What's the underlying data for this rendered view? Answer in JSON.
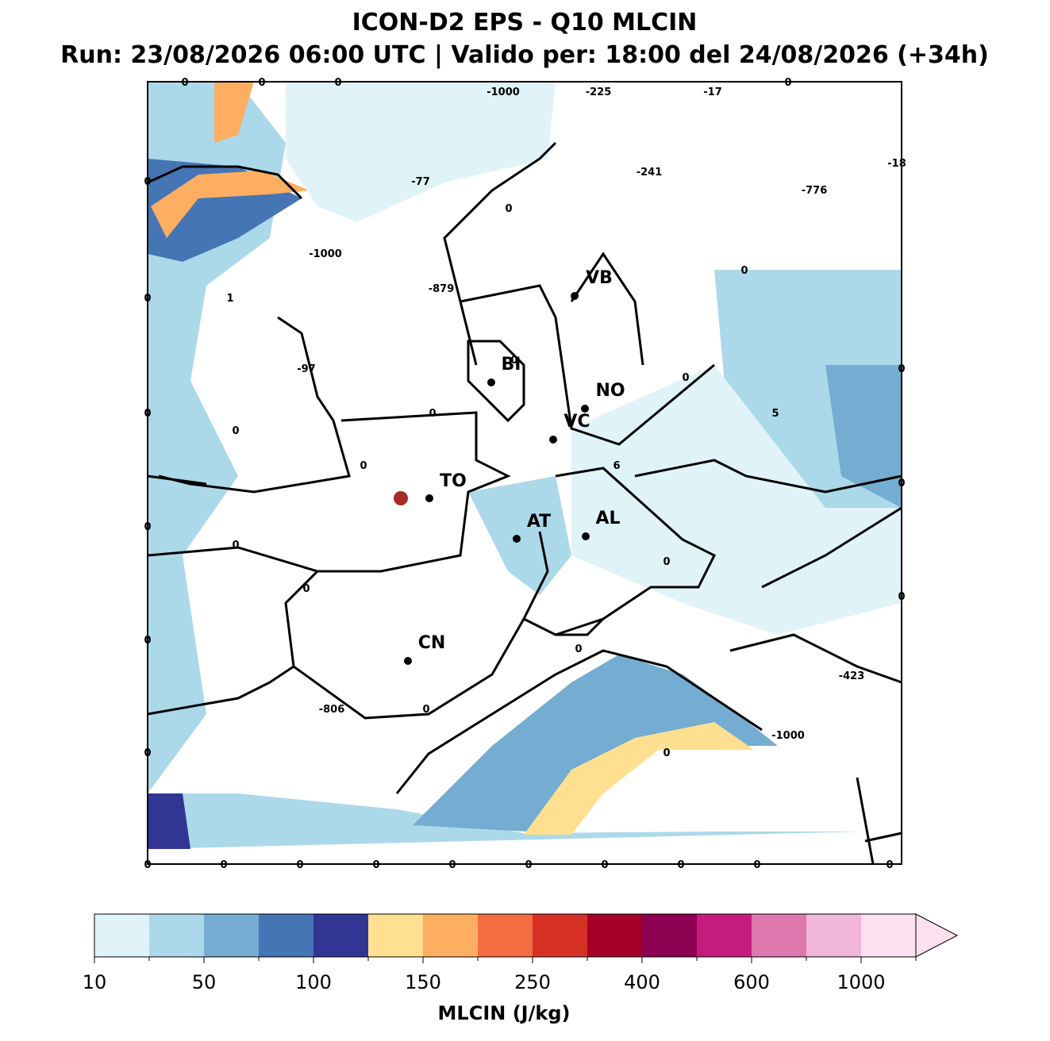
{
  "header": {
    "title": "ICON-D2 EPS - Q10 MLCIN",
    "subtitle": "Run: 23/08/2026 06:00 UTC | Valido per: 18:00 del 24/08/2026 (+34h)"
  },
  "cities": [
    {
      "label": "VB"
    },
    {
      "label": "BI"
    },
    {
      "label": "NO"
    },
    {
      "label": "VC"
    },
    {
      "label": "TO"
    },
    {
      "label": "AT"
    },
    {
      "label": "AL"
    },
    {
      "label": "CN"
    }
  ],
  "contour_labels": [
    0,
    0,
    0,
    -1000,
    -225,
    -17,
    0,
    0,
    -77,
    -241,
    -776,
    -18,
    0,
    -1000,
    -879,
    0,
    0,
    1,
    -97,
    0,
    0,
    0,
    0,
    0,
    5,
    0,
    0,
    6,
    0,
    0,
    0,
    0,
    0,
    0,
    0,
    0,
    -423,
    -806,
    0,
    -1000,
    0,
    0,
    0,
    0,
    0,
    0,
    0,
    0,
    0,
    0,
    0,
    0
  ],
  "colorbar": {
    "label": "MLCIN (J/kg)",
    "ticks": [
      10,
      50,
      100,
      150,
      250,
      400,
      600,
      1000
    ],
    "colors": [
      "#e0f3f8",
      "#abd9e9",
      "#74add1",
      "#4575b4",
      "#313695",
      "#fee090",
      "#fdae61",
      "#f46d43",
      "#d73027",
      "#a50026",
      "#8e0152",
      "#c51b7d",
      "#de77ae",
      "#f1b6da",
      "#fde0ef"
    ]
  }
}
